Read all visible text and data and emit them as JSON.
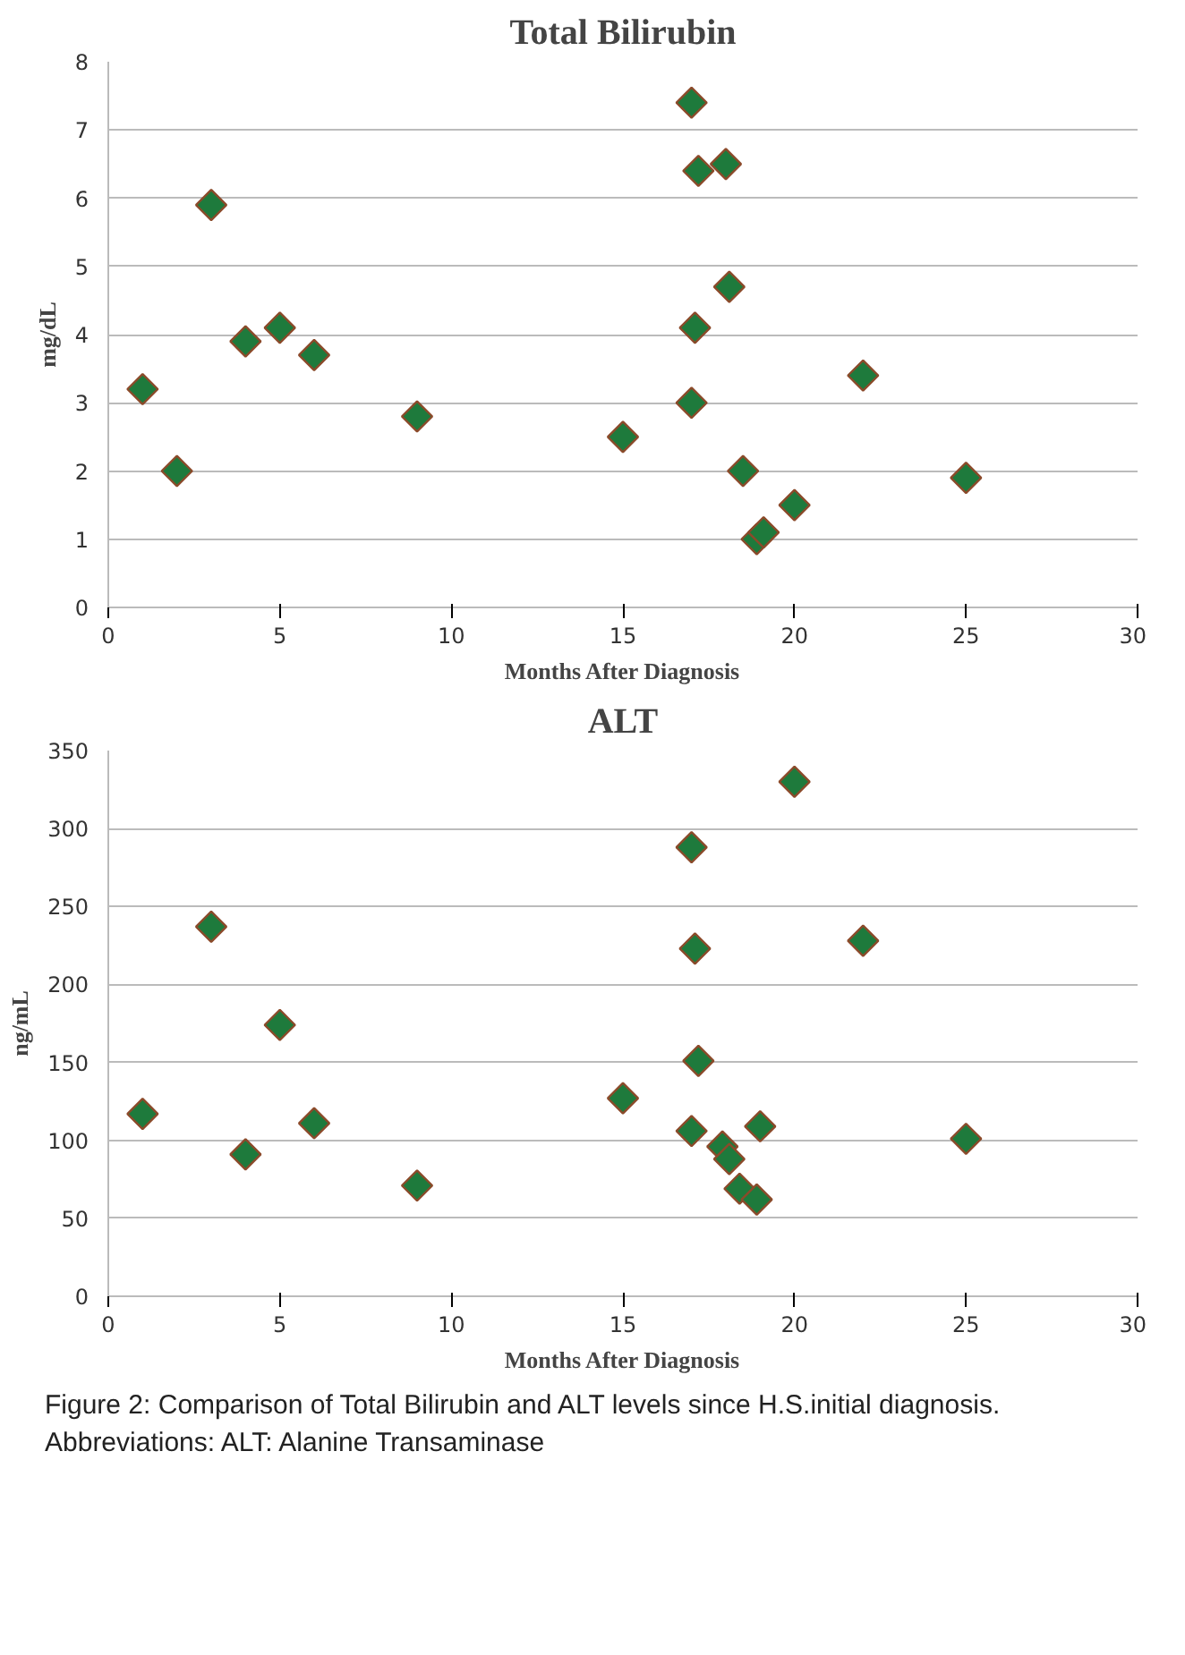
{
  "chart_data": [
    {
      "type": "scatter",
      "title": "Total Bilirubin",
      "xlabel": "Months After Diagnosis",
      "ylabel": "mg/dL",
      "marker": "diamond",
      "grid": "y",
      "xlim": [
        0,
        30
      ],
      "xticks": [
        0,
        5,
        10,
        15,
        20,
        25,
        30
      ],
      "ylim": [
        0,
        8
      ],
      "yticks": [
        0,
        1,
        2,
        3,
        4,
        5,
        6,
        7,
        8
      ],
      "series": [
        {
          "color": "#1e7a3c",
          "x": [
            1,
            2,
            3,
            4,
            5,
            6,
            9,
            15,
            17,
            17.2,
            18,
            18.1,
            17.1,
            17,
            18.5,
            18.9,
            19.1,
            20,
            22,
            25
          ],
          "values": [
            3.2,
            2.0,
            5.9,
            3.9,
            4.1,
            3.7,
            2.8,
            2.5,
            7.4,
            6.4,
            6.5,
            4.7,
            4.1,
            3.0,
            2.0,
            1.0,
            1.1,
            1.5,
            3.4,
            1.9
          ]
        }
      ]
    },
    {
      "type": "scatter",
      "title": "ALT",
      "xlabel": "Months After Diagnosis",
      "ylabel": "ng/mL",
      "marker": "diamond",
      "grid": "y",
      "xlim": [
        0,
        30
      ],
      "xticks": [
        0,
        5,
        10,
        15,
        20,
        25,
        30
      ],
      "ylim": [
        0,
        350
      ],
      "yticks": [
        0,
        50,
        100,
        150,
        200,
        250,
        300,
        350
      ],
      "annotations": [
        "Figure 2: Comparison of Total Bilirubin and ALT levels since H.S.initial diagnosis.",
        "Abbreviations: ALT: Alanine Transaminase"
      ],
      "series": [
        {
          "color": "#1e7a3c",
          "x": [
            1,
            3,
            4,
            5,
            6,
            9,
            15,
            17,
            17.1,
            17.2,
            17,
            17.9,
            18.1,
            18.4,
            18.9,
            19,
            20,
            22,
            25
          ],
          "values": [
            117,
            237,
            91,
            174,
            111,
            71,
            127,
            288,
            223,
            151,
            106,
            96,
            88,
            69,
            62,
            109,
            330,
            228,
            101
          ]
        }
      ]
    }
  ]
}
